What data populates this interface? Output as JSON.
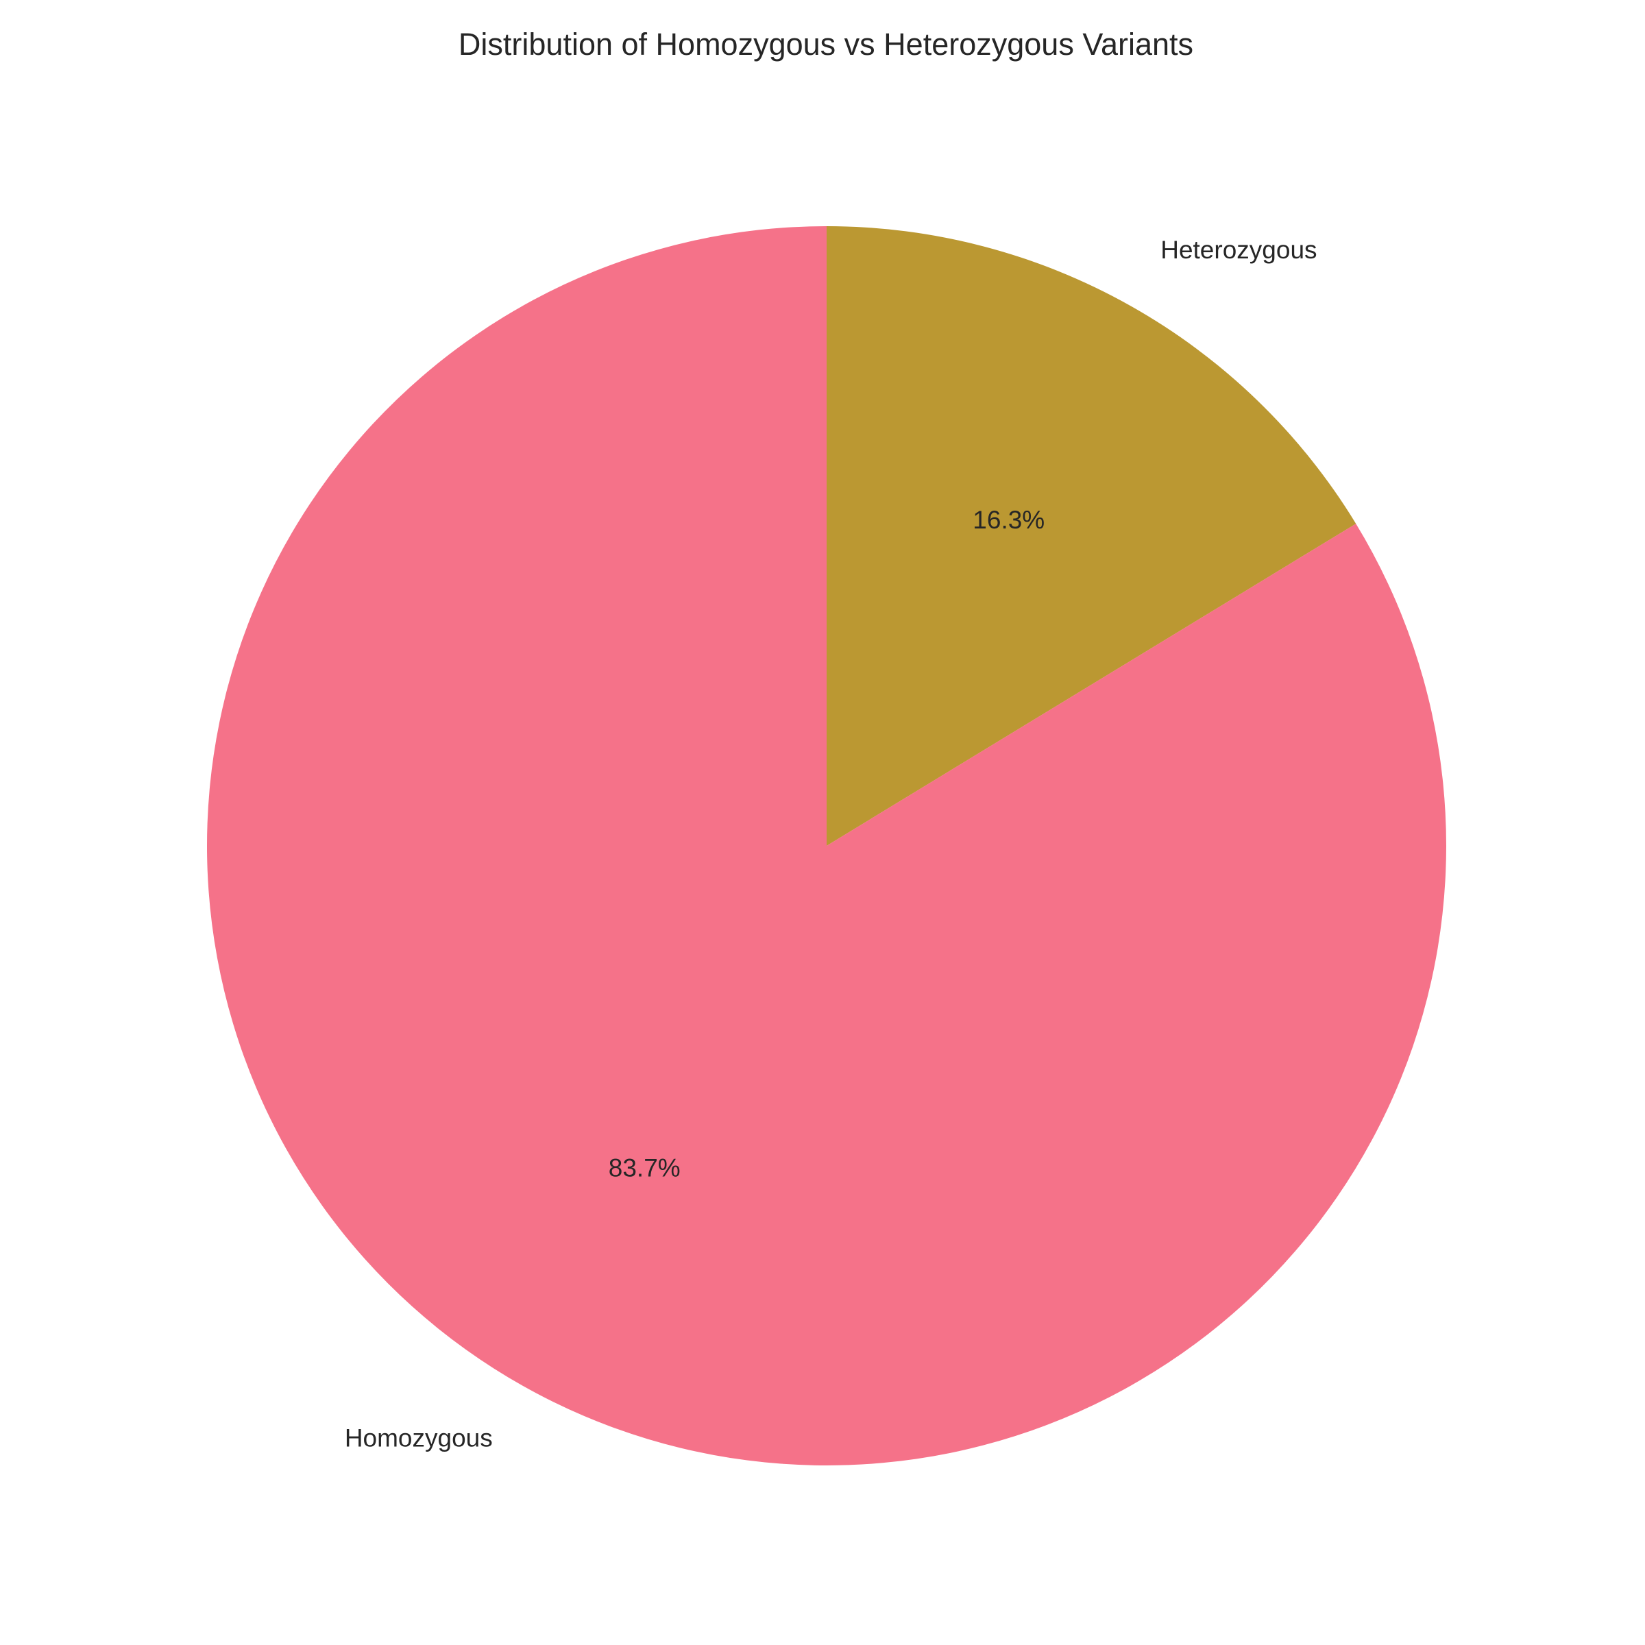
{
  "chart_data": {
    "type": "pie",
    "title": "Distribution of Homozygous vs Heterozygous Variants",
    "start_angle_deg": 90,
    "direction": "clockwise",
    "slices": [
      {
        "label": "Heterozygous",
        "value": 16.3,
        "pct_label": "16.3%",
        "color": "#bb9832"
      },
      {
        "label": "Homozygous",
        "value": 83.7,
        "pct_label": "83.7%",
        "color": "#f57289"
      }
    ]
  }
}
